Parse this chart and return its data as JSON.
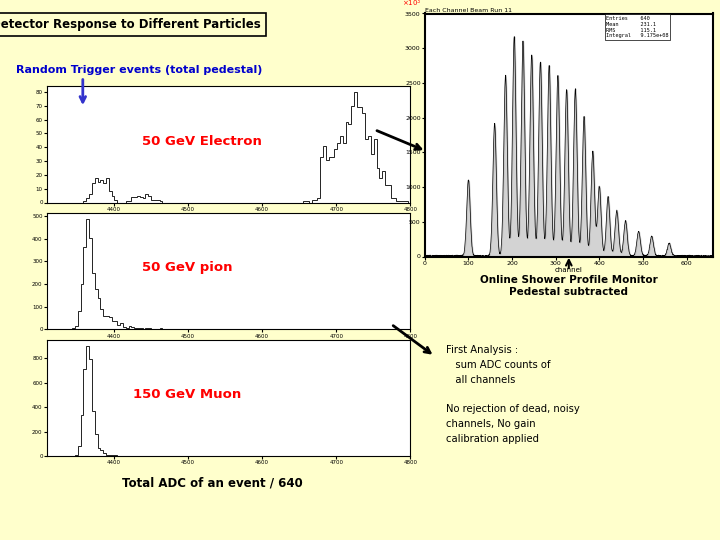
{
  "bg_color": "#ffffcc",
  "title_text": "Detector Response to Different Particles",
  "random_trigger_label": "Random Trigger events (total pedestal)",
  "label_electron": "50 GeV Electron",
  "label_pion": "50 GeV pion",
  "label_muon": "150 GeV Muon",
  "xlabel": "Total ADC of an event / 640",
  "label_color_red": "#ff0000",
  "label_color_blue": "#0000cc",
  "online_monitor_title": "Online Shower Profile Monitor\nPedestal subtracted",
  "first_analysis_text": "First Analysis :\n   sum ADC counts of\n   all channels\n\nNo rejection of dead, noisy\nchannels, No gain\ncalibration applied",
  "spm_title": "Each Channel Beam Run 11",
  "spm_xlabel": "channel",
  "spm_ylabel_label": "10³",
  "spm_stats": "Entries    640\nMean       231.1\nRMS        115.1\nIntegral   9.175e+08"
}
